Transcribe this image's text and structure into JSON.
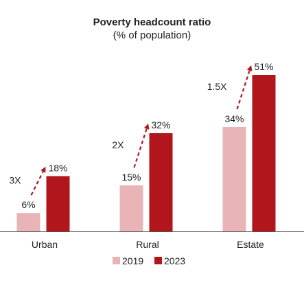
{
  "chart_data": {
    "type": "bar",
    "title": "Poverty headcount ratio",
    "subtitle": "(% of population)",
    "categories": [
      "Urban",
      "Rural",
      "Estate"
    ],
    "series": [
      {
        "name": "2019",
        "values": [
          6,
          15,
          34
        ],
        "labels": [
          "6%",
          "15%",
          "34%"
        ],
        "color": "#e8b4b8"
      },
      {
        "name": "2023",
        "values": [
          18,
          32,
          51
        ],
        "labels": [
          "18%",
          "32%",
          "51%"
        ],
        "color": "#b0161c"
      }
    ],
    "multipliers": [
      "3X",
      "2X",
      "1.5X"
    ],
    "arrow_color": "#b0161c",
    "axis_color": "#555555",
    "ylim": [
      0,
      55
    ],
    "legend_position": "bottom-center",
    "grid": false
  }
}
